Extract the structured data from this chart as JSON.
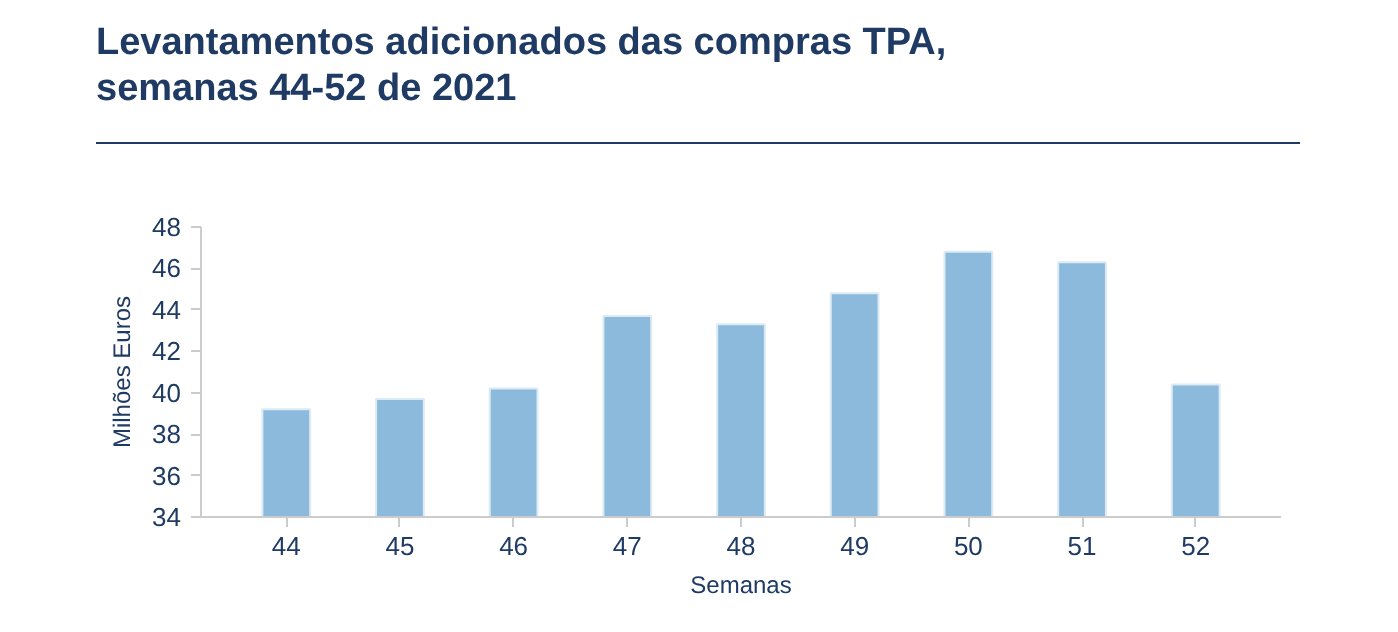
{
  "chart_data": {
    "type": "bar",
    "title": "Levantamentos adicionados das compras TPA,\nsemanas 44-52 de 2021",
    "xlabel": "Semanas",
    "ylabel": "Milhões Euros",
    "categories": [
      "44",
      "45",
      "46",
      "47",
      "48",
      "49",
      "50",
      "51",
      "52"
    ],
    "values": [
      39.2,
      39.7,
      40.2,
      43.7,
      43.3,
      44.8,
      46.8,
      46.3,
      40.4
    ],
    "color": "#8bbadc",
    "ylim": [
      34,
      48
    ],
    "yticks": [
      34,
      36,
      38,
      40,
      42,
      44,
      46,
      48
    ],
    "grid": false
  }
}
